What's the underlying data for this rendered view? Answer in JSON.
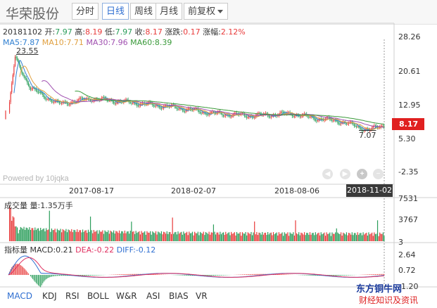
{
  "header": {
    "stock_name": "华荣股份",
    "tabs": [
      "分时",
      "日线",
      "周线",
      "月线"
    ],
    "active_tab": "日线",
    "adjust_label": "前复权"
  },
  "info_line": {
    "date": "20181102",
    "open_label": "开:",
    "open": "7.97",
    "high_label": "高:",
    "high": "8.19",
    "low_label": "低:",
    "low": "7.97",
    "close_label": "收:",
    "close": "8.17",
    "change_label": "涨跌:",
    "change": "0.17",
    "pct_label": "涨幅:",
    "pct": "2.12%"
  },
  "ma_line": {
    "ma5": "MA5:7.87",
    "ma10": "MA10:7.71",
    "ma30": "MA30:7.96",
    "ma60": "MA60:8.39",
    "ma5_color": "#2f7fd1",
    "ma10_color": "#e0a040",
    "ma30_color": "#a050b0",
    "ma60_color": "#3a9a3a"
  },
  "price_panel": {
    "y_ticks": [
      "28.26",
      "20.61",
      "12.95",
      "5.30",
      "-2.35"
    ],
    "current_price": "8.17",
    "high_annotation": "23.55",
    "low_annotation": "7.07",
    "powered": "Powered by 10jqka",
    "date_labels": [
      "2017-08-17",
      "2018-02-07",
      "2018-08-06"
    ],
    "current_date": "2018-11-02"
  },
  "volume_panel": {
    "label": "成交量",
    "value_text": "量:1.35万手",
    "y_ticks": [
      "7531",
      "3767",
      "3"
    ]
  },
  "macd_panel": {
    "label": "指标量",
    "macd": "MACD:0.21",
    "dea": "DEA:-0.22",
    "diff": "DIFF:-0.12",
    "dea_color": "#e03060",
    "diff_color": "#2f6fd1",
    "y_ticks": [
      "2.64",
      "0.72",
      "-1.20"
    ]
  },
  "bottom_tabs": [
    "MACD",
    "KDJ",
    "RSI",
    "BOLL",
    "W&R",
    "ASI",
    "BIAS",
    "VR"
  ],
  "active_bottom_tab": "MACD",
  "watermark": {
    "line1": "东方铜牛网",
    "line2": "财经知识及资讯"
  },
  "colors": {
    "up": "#e83a3a",
    "down": "#2a9d5a",
    "axis": "#cfcfcf"
  },
  "chart_data": {
    "type": "candlestick",
    "x_range": [
      "2017-06",
      "2018-11-02"
    ],
    "ylim": [
      -2.35,
      28.26
    ],
    "close_series_approx": [
      {
        "x": "2017-06",
        "y": 11.0
      },
      {
        "x": "2017-06",
        "y": 23.55
      },
      {
        "x": "2017-07",
        "y": 16.5
      },
      {
        "x": "2017-08",
        "y": 13.0
      },
      {
        "x": "2017-09",
        "y": 14.2
      },
      {
        "x": "2017-11",
        "y": 13.3
      },
      {
        "x": "2018-01",
        "y": 12.2
      },
      {
        "x": "2018-03",
        "y": 10.8
      },
      {
        "x": "2018-05",
        "y": 10.3
      },
      {
        "x": "2018-07",
        "y": 10.8
      },
      {
        "x": "2018-08",
        "y": 9.8
      },
      {
        "x": "2018-09",
        "y": 9.0
      },
      {
        "x": "2018-10",
        "y": 7.07
      },
      {
        "x": "2018-11-02",
        "y": 8.17
      }
    ],
    "volume_ylim": [
      3,
      7531
    ],
    "macd_ylim": [
      -1.2,
      2.64
    ]
  }
}
